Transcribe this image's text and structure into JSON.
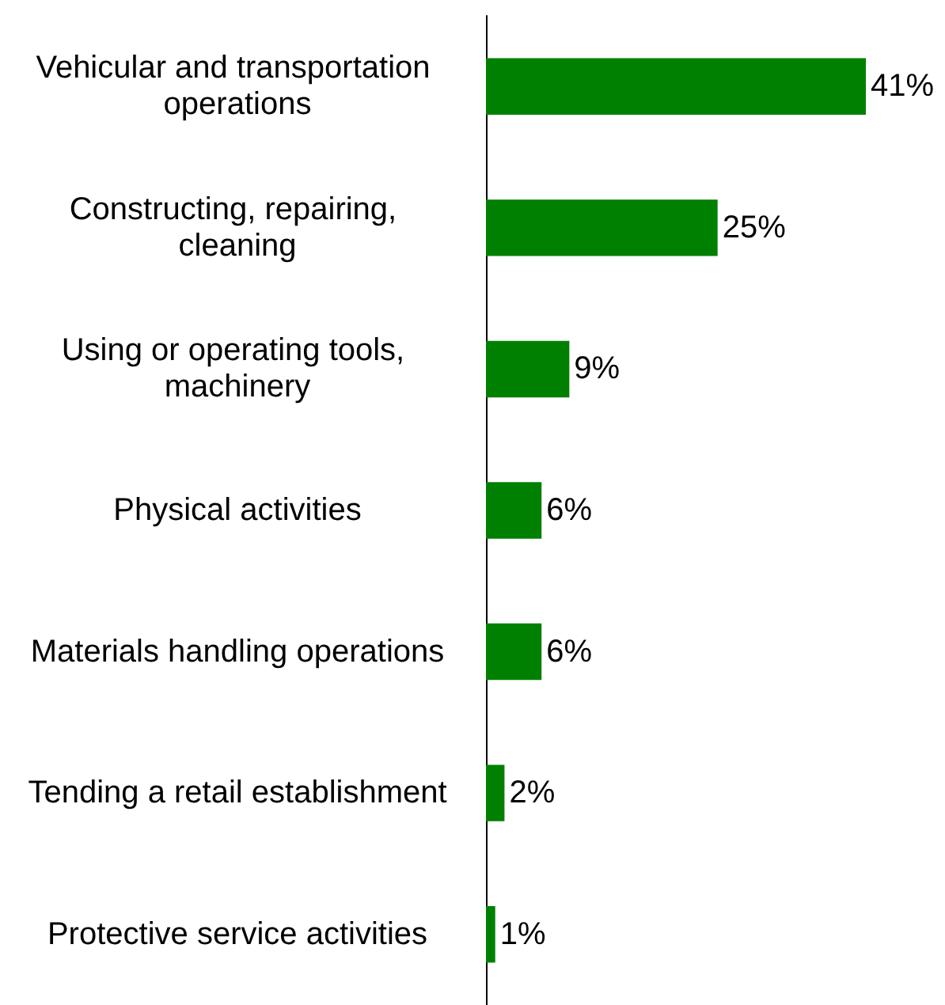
{
  "chart_data": {
    "type": "bar",
    "orientation": "horizontal",
    "categories": [
      "Vehicular and transportation operations",
      "Constructing, repairing, cleaning",
      "Using or operating tools, machinery",
      "Physical activities",
      "Materials handling operations",
      "Tending a retail establishment",
      "Protective service activities"
    ],
    "values": [
      41,
      25,
      9,
      6,
      6,
      2,
      1
    ],
    "value_labels": [
      "41%",
      "25%",
      "9%",
      "6%",
      "6%",
      "2%",
      "1%"
    ],
    "color": "#008000",
    "tick_labels": "y"
  }
}
